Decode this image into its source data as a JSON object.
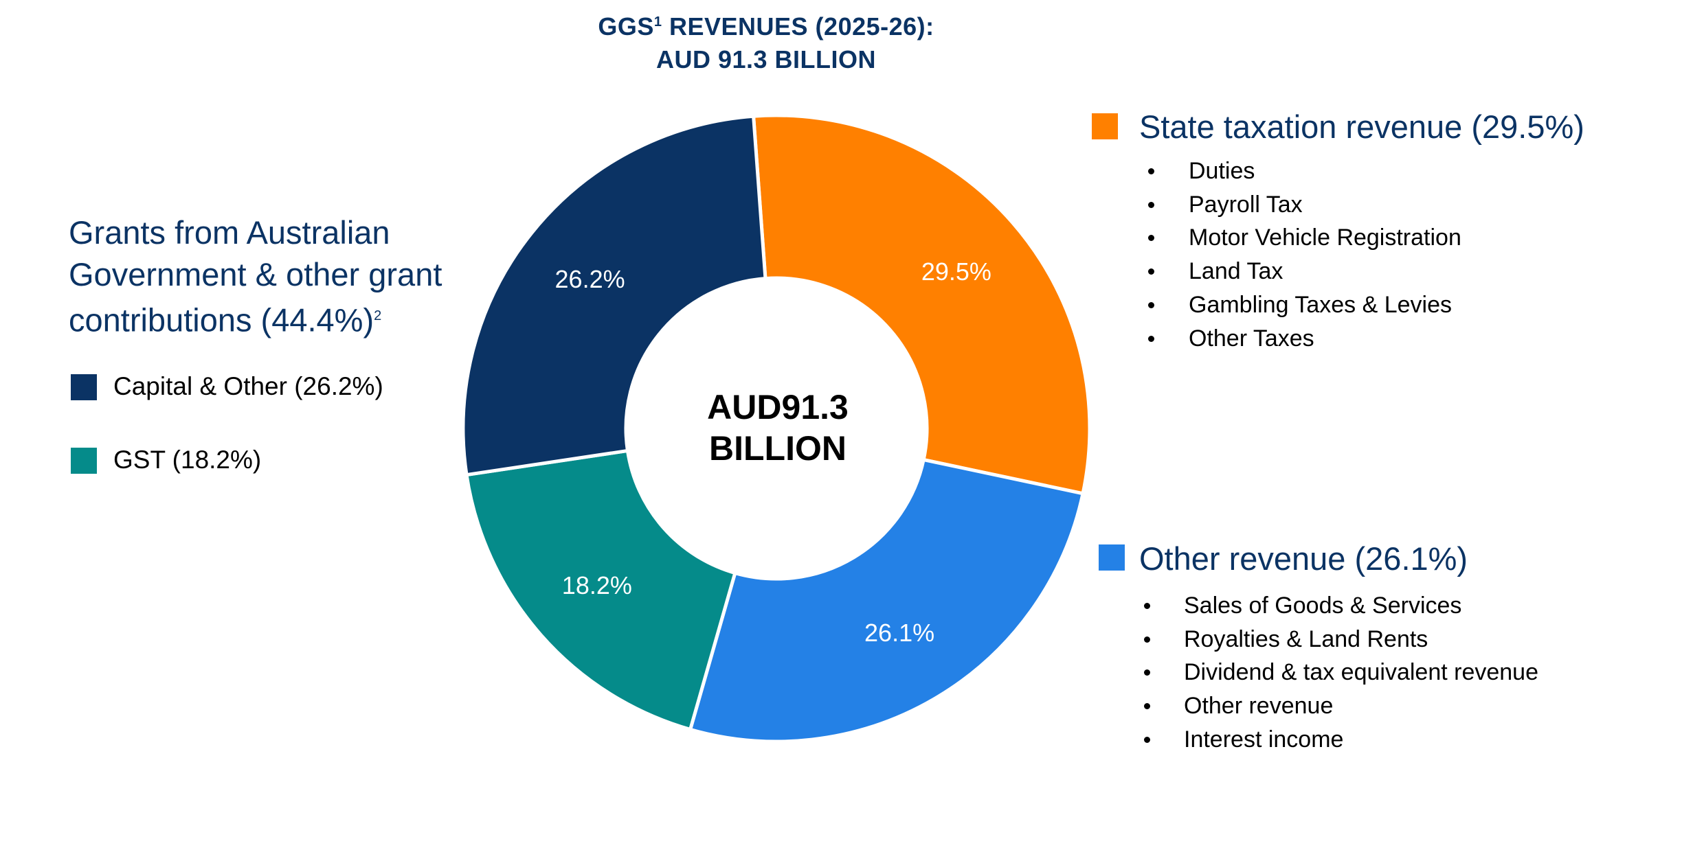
{
  "title": {
    "line1_pre": "GGS",
    "line1_sup": "1",
    "line1_post": " REVENUES (2025-26):",
    "line2": "AUD 91.3 BILLION"
  },
  "center_label": {
    "line1": "AUD91.3",
    "line2": "BILLION"
  },
  "grants": {
    "heading_line1": "Grants from Australian",
    "heading_line2": "Government & other grant",
    "heading_line3": "contributions (44.4%)",
    "heading_sup": "2",
    "legend": [
      {
        "label": "Capital & Other (26.2%)",
        "color": "#0b3364"
      },
      {
        "label": "GST (18.2%)",
        "color": "#058b8a"
      }
    ]
  },
  "state_tax": {
    "heading": "State taxation revenue (29.5%)",
    "color": "#ff8000",
    "items": [
      "Duties",
      "Payroll Tax",
      "Motor Vehicle Registration",
      "Land Tax",
      "Gambling Taxes & Levies",
      "Other Taxes"
    ]
  },
  "other_revenue": {
    "heading": "Other revenue (26.1%)",
    "color": "#2481e6",
    "items": [
      "Sales of Goods & Services",
      "Royalties & Land Rents",
      "Dividend & tax equivalent revenue",
      "Other revenue",
      "Interest income"
    ]
  },
  "chart_data": {
    "type": "pie",
    "donut": true,
    "title": "GGS1 REVENUES (2025-26): AUD 91.3 BILLION",
    "unit": "%",
    "slices": [
      {
        "label": "State taxation revenue",
        "value": 29.5,
        "display": "29.5%",
        "color": "#ff8000"
      },
      {
        "label": "Other revenue",
        "value": 26.1,
        "display": "26.1%",
        "color": "#2481e6"
      },
      {
        "label": "GST",
        "value": 18.2,
        "display": "18.2%",
        "color": "#058b8a"
      },
      {
        "label": "Capital & Other",
        "value": 26.2,
        "display": "26.2%",
        "color": "#0b3364"
      }
    ]
  }
}
